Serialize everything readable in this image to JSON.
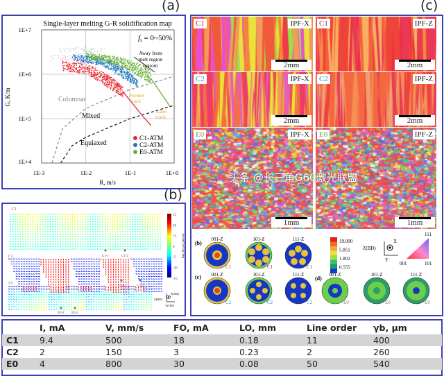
{
  "panels": {
    "a": "(a)",
    "b": "(b)",
    "c": "(c)"
  },
  "chart_data": {
    "type": "scatter",
    "title": "Single-layer melting G-R solidification map",
    "annotation_fs": "f",
    "annotation_fs_sub": "s",
    "annotation_fs_range": " = 0~50%",
    "xlabel": "R, m/s",
    "ylabel": "G, K/m",
    "xscale": "log",
    "yscale": "log",
    "xlim": [
      0.001,
      1
    ],
    "ylim": [
      10000,
      10000000
    ],
    "xticks": [
      "1E-3",
      "1E-2",
      "1E-1",
      "1E+0"
    ],
    "yticks": [
      "1E+4",
      "1E+5",
      "1E+6",
      "1E+7"
    ],
    "grid": true,
    "legend_position": "bottom-right",
    "regions": [
      "Columnar",
      "Mixed",
      "Equiaxed"
    ],
    "annotations": {
      "away": [
        "Away from",
        "melt region",
        "bottom"
      ],
      "former": [
        "Former",
        "track"
      ],
      "later": [
        "Later",
        "track"
      ]
    },
    "boundaries": [
      {
        "style": "dashed-gray",
        "points": [
          [
            0.0017,
            10000
          ],
          [
            0.003,
            60000
          ],
          [
            0.01,
            170000
          ],
          [
            0.1,
            450000
          ],
          [
            1,
            900000
          ]
        ]
      },
      {
        "style": "dashed-black",
        "points": [
          [
            0.0027,
            10000
          ],
          [
            0.005,
            25000
          ],
          [
            0.01,
            38000
          ],
          [
            0.1,
            100000
          ],
          [
            1,
            200000
          ]
        ]
      }
    ],
    "series": [
      {
        "name": "C1-ATM",
        "color": "#e8262a",
        "band": [
          [
            0.003,
            2000000,
            1200000
          ],
          [
            0.01,
            1700000,
            1000000
          ],
          [
            0.03,
            1000000,
            500000
          ],
          [
            0.07,
            500000,
            300000
          ]
        ],
        "tail": [
          [
            0.07,
            400000
          ],
          [
            0.2,
            110000
          ],
          [
            0.3,
            70000
          ]
        ]
      },
      {
        "name": "C2-ATM",
        "color": "#1f77c4",
        "band": [
          [
            0.005,
            2800000,
            2000000
          ],
          [
            0.02,
            2500000,
            1600000
          ],
          [
            0.07,
            1400000,
            800000
          ],
          [
            0.15,
            700000,
            500000
          ]
        ],
        "tail": []
      },
      {
        "name": "E0-ATM",
        "color": "#6cae3a",
        "band": [
          [
            0.01,
            3000000,
            2200000
          ],
          [
            0.05,
            2500000,
            1600000
          ],
          [
            0.15,
            1800000,
            900000
          ],
          [
            0.3,
            1200000,
            600000
          ]
        ],
        "tail": [
          [
            0.3,
            800000
          ],
          [
            0.8,
            190000
          ]
        ]
      }
    ]
  },
  "quiver": {
    "rows": [
      "C1",
      "C2",
      "E0"
    ],
    "colorbar_ticks": [
      "15",
      "10",
      "+5",
      "0",
      "-5",
      "-10",
      "-15"
    ],
    "colorbar_label": "Arctan(Gx/Gy), deg",
    "markers": [
      "C1-1",
      "C1-2",
      "C2-1",
      "C2-2",
      "E0-1",
      "E0-2"
    ],
    "axes": {
      "z": "Z(BD)",
      "x": "X(SD)",
      "y": "Y(OD)"
    }
  },
  "maps": [
    {
      "label": "C1",
      "mode": "IPF-X",
      "scale": "2mm",
      "label_color": "#a33"
    },
    {
      "label": "C1",
      "mode": "IPF-Z",
      "scale": "2mm",
      "label_color": "#a33"
    },
    {
      "label": "C2",
      "mode": "IPF-X",
      "scale": "2mm",
      "label_color": "#2b8fc0"
    },
    {
      "label": "C2",
      "mode": "IPF-Z",
      "scale": "2mm",
      "label_color": "#2b8fc0"
    },
    {
      "label": "E0",
      "mode": "IPF-X",
      "scale": "1mm",
      "label_color": "#6a9a40"
    },
    {
      "label": "E0",
      "mode": "IPF-Z",
      "scale": "1mm",
      "label_color": "#6a9a40"
    }
  ],
  "pole_figures": {
    "groups": [
      "(b)",
      "(c)",
      "(d)"
    ],
    "items": [
      {
        "title": "001-Z",
        "sample": "C1"
      },
      {
        "title": "101-Z",
        "sample": "C1"
      },
      {
        "title": "111-Z",
        "sample": "C1"
      },
      {
        "title": "001-Z",
        "sample": "C2"
      },
      {
        "title": "101-Z",
        "sample": "C2"
      },
      {
        "title": "111-Z",
        "sample": "C2"
      },
      {
        "title": "001-Z",
        "sample": "E0"
      },
      {
        "title": "101-Z",
        "sample": "E0"
      },
      {
        "title": "111-Z",
        "sample": "E0"
      }
    ],
    "scale_values": [
      "19.000",
      "5.851",
      "1.802",
      "0.555"
    ],
    "axes": {
      "z": "Z(BD)",
      "x": "X",
      "y": "Y"
    },
    "ipf_triangle": {
      "top": "111",
      "left": "001",
      "right": "101"
    }
  },
  "table": {
    "headers": [
      "",
      "I, mA",
      "V, mm/s",
      "FO, mA",
      "LO, mm",
      "Line order",
      "γb, μm"
    ],
    "rows": [
      [
        "C1",
        "9.4",
        "500",
        "18",
        "0.18",
        "11",
        "400"
      ],
      [
        "C2",
        "2",
        "150",
        "3",
        "0.23",
        "2",
        "260"
      ],
      [
        "E0",
        "4",
        "800",
        "30",
        "0.08",
        "50",
        "540"
      ]
    ]
  },
  "watermark": "头条 @长三角G60激光联盟"
}
